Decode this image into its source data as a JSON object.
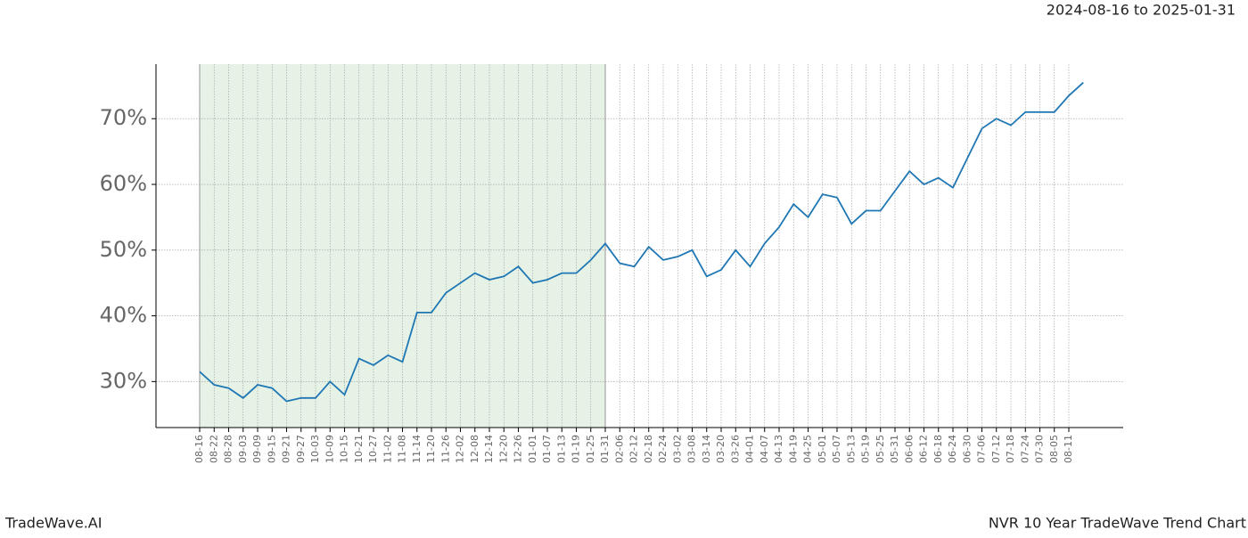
{
  "chart_data": {
    "type": "line",
    "title": "2024-08-16 to 2025-01-31",
    "brand": "TradeWave.AI",
    "caption": "NVR 10 Year TradeWave Trend Chart",
    "categories": [
      "08-16",
      "08-22",
      "08-28",
      "09-03",
      "09-09",
      "09-15",
      "09-21",
      "09-27",
      "10-03",
      "10-09",
      "10-15",
      "10-21",
      "10-27",
      "11-02",
      "11-08",
      "11-14",
      "11-20",
      "11-26",
      "12-02",
      "12-08",
      "12-14",
      "12-20",
      "12-26",
      "01-01",
      "01-07",
      "01-13",
      "01-19",
      "01-25",
      "01-31",
      "02-06",
      "02-12",
      "02-18",
      "02-24",
      "03-02",
      "03-08",
      "03-14",
      "03-20",
      "03-26",
      "04-01",
      "04-07",
      "04-13",
      "04-19",
      "04-25",
      "05-01",
      "05-07",
      "05-13",
      "05-19",
      "05-25",
      "05-31",
      "06-06",
      "06-12",
      "06-18",
      "06-24",
      "06-30",
      "07-06",
      "07-12",
      "07-18",
      "07-24",
      "07-30",
      "08-05",
      "08-11",
      null
    ],
    "series": [
      {
        "color": "#1f77b4",
        "values": [
          31.5,
          29.5,
          29,
          27.5,
          29.5,
          29,
          27,
          27.5,
          27.5,
          30,
          28,
          33.5,
          32.5,
          34,
          33,
          40.5,
          40.5,
          43.5,
          45,
          46.5,
          45.5,
          46,
          47.5,
          45,
          45.5,
          46.5,
          46.5,
          48.5,
          51,
          48,
          47.5,
          50.5,
          48.5,
          49,
          50,
          46,
          47,
          50,
          47.5,
          51,
          53.5,
          57,
          55,
          58.5,
          58,
          54,
          56,
          56,
          59,
          62,
          60,
          61,
          59.5,
          64,
          68.5,
          70,
          69,
          71,
          71,
          71,
          73.5,
          75.5
        ]
      }
    ],
    "shade": [
      "08-16",
      "01-31"
    ],
    "shade_color": "#e6f2e6",
    "ylim": [
      23,
      78.3
    ],
    "yticks": [
      {
        "value": 30,
        "label": "30%"
      },
      {
        "value": 40,
        "label": "40%"
      },
      {
        "value": 50,
        "label": "50%"
      },
      {
        "value": 60,
        "label": "60%"
      },
      {
        "value": 70,
        "label": "70%"
      }
    ],
    "grid": true
  }
}
